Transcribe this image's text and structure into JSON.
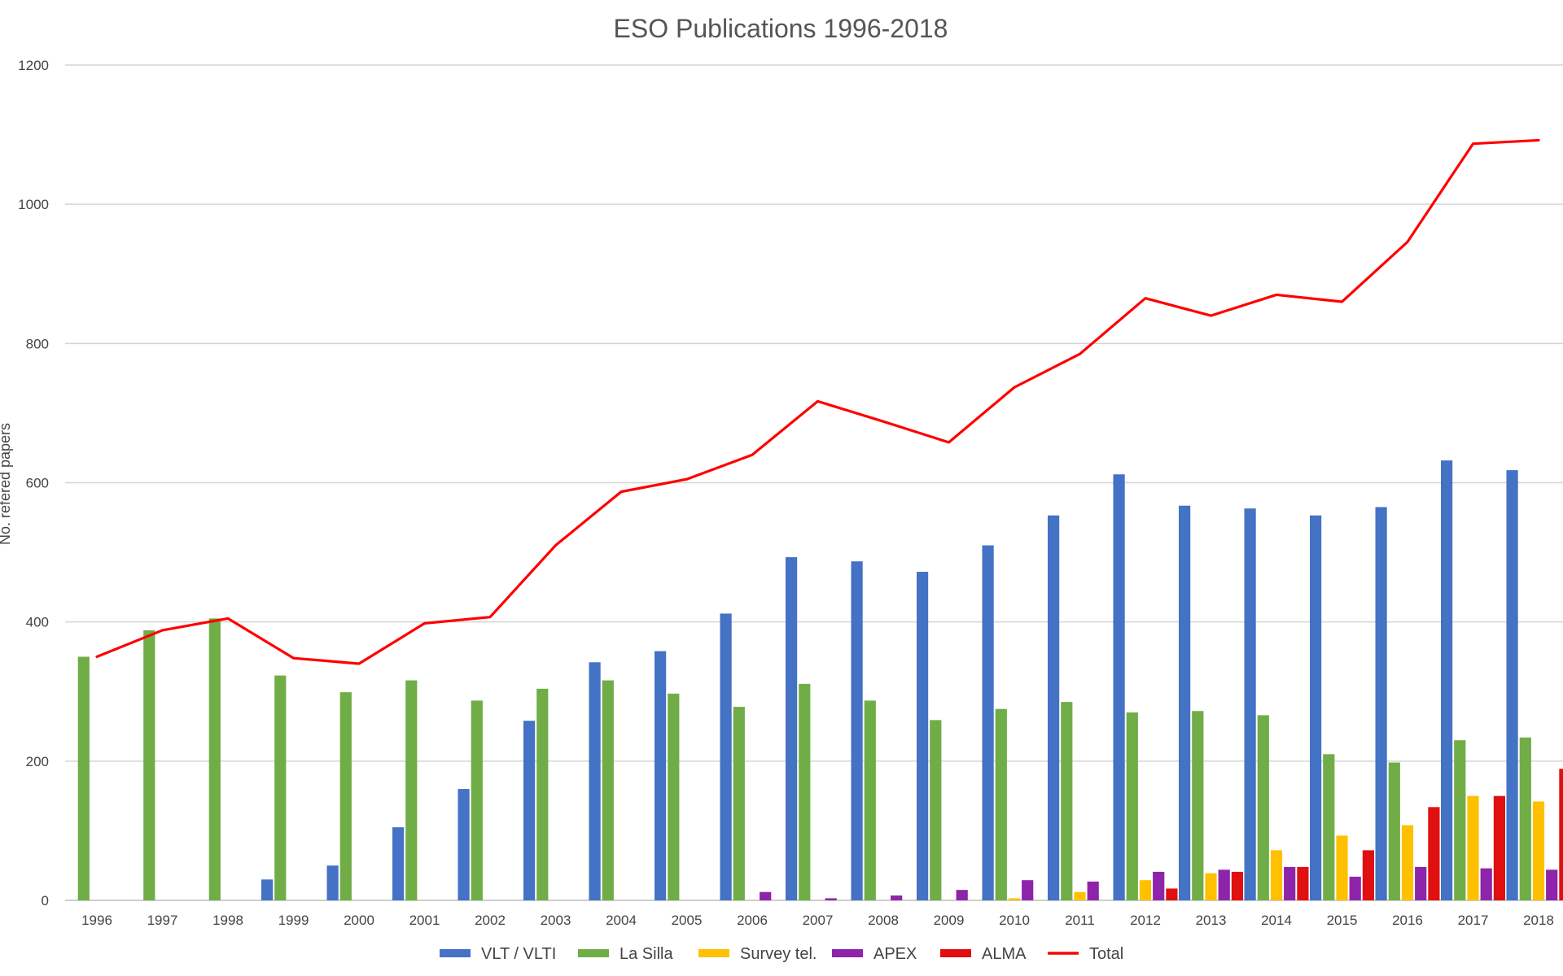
{
  "chart_data": {
    "type": "bar",
    "title": "ESO Publications 1996-2018",
    "xlabel": "",
    "ylabel": "No. refered papers",
    "ylim": [
      0,
      1200
    ],
    "yticks": [
      0,
      200,
      400,
      600,
      800,
      1000,
      1200
    ],
    "grid": true,
    "legend_position": "bottom",
    "categories": [
      "1996",
      "1997",
      "1998",
      "1999",
      "2000",
      "2001",
      "2002",
      "2003",
      "2004",
      "2005",
      "2006",
      "2007",
      "2008",
      "2009",
      "2010",
      "2011",
      "2012",
      "2013",
      "2014",
      "2015",
      "2016",
      "2017",
      "2018"
    ],
    "series": [
      {
        "name": "VLT / VLTI",
        "type": "bar",
        "color": "#4472c4",
        "values": [
          0,
          0,
          0,
          30,
          50,
          105,
          160,
          258,
          342,
          358,
          412,
          493,
          487,
          472,
          510,
          553,
          612,
          567,
          563,
          553,
          565,
          632,
          618
        ]
      },
      {
        "name": "La Silla",
        "type": "bar",
        "color": "#70ad47",
        "values": [
          350,
          388,
          405,
          323,
          299,
          316,
          287,
          304,
          316,
          297,
          278,
          311,
          287,
          259,
          275,
          285,
          270,
          272,
          266,
          210,
          198,
          230,
          234
        ]
      },
      {
        "name": "Survey tel.",
        "type": "bar",
        "color": "#ffc000",
        "values": [
          0,
          0,
          0,
          0,
          0,
          0,
          0,
          0,
          0,
          0,
          0,
          0,
          0,
          0,
          3,
          12,
          29,
          39,
          72,
          93,
          108,
          150,
          142
        ]
      },
      {
        "name": "APEX",
        "type": "bar",
        "color": "#8e24aa",
        "values": [
          0,
          0,
          0,
          0,
          0,
          0,
          0,
          0,
          0,
          0,
          12,
          3,
          7,
          15,
          29,
          27,
          41,
          44,
          48,
          34,
          48,
          46,
          44
        ]
      },
      {
        "name": "ALMA",
        "type": "bar",
        "color": "#e01010",
        "values": [
          0,
          0,
          0,
          0,
          0,
          0,
          0,
          0,
          0,
          0,
          0,
          0,
          0,
          0,
          0,
          0,
          17,
          41,
          48,
          72,
          134,
          150,
          189
        ]
      },
      {
        "name": "Total",
        "type": "line",
        "color": "#ff0000",
        "values": [
          350,
          388,
          405,
          348,
          340,
          398,
          407,
          510,
          587,
          605,
          640,
          717,
          688,
          658,
          737,
          785,
          865,
          840,
          870,
          860,
          946,
          1087,
          1092
        ]
      }
    ]
  }
}
